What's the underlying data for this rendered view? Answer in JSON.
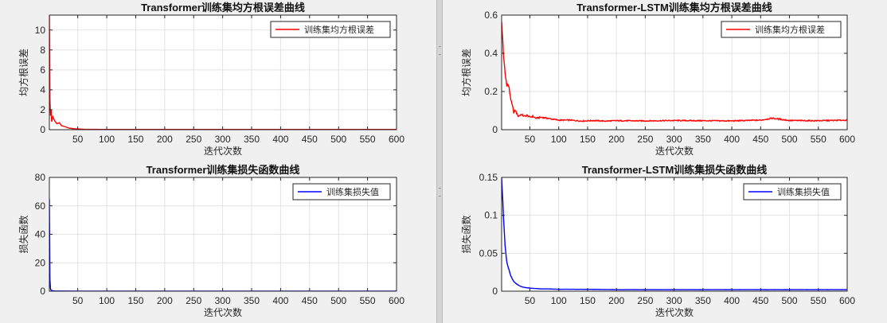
{
  "chart_data": [
    {
      "type": "line",
      "title": "Transformer训练集均方根误差曲线",
      "xlabel": "迭代次数",
      "ylabel": "均方根误差",
      "xlim": [
        1,
        600
      ],
      "ylim": [
        0,
        11.5
      ],
      "xticks": [
        50,
        100,
        150,
        200,
        250,
        300,
        350,
        400,
        450,
        500,
        550,
        600
      ],
      "yticks": [
        0,
        2,
        4,
        6,
        8,
        10
      ],
      "grid": true,
      "legend_position": "top-right",
      "series": [
        {
          "name": "训练集均方根误差",
          "color": "#ff0000",
          "x": [
            1,
            2,
            3,
            4,
            5,
            7,
            10,
            14,
            18,
            22,
            28,
            35,
            45,
            60,
            80,
            100,
            200,
            300,
            400,
            500,
            600
          ],
          "y": [
            11.5,
            3.0,
            1.4,
            2.0,
            0.8,
            1.3,
            0.9,
            0.6,
            0.7,
            0.4,
            0.3,
            0.15,
            0.08,
            0.04,
            0.03,
            0.02,
            0.02,
            0.02,
            0.02,
            0.02,
            0.02
          ]
        }
      ]
    },
    {
      "type": "line",
      "title": "Transformer训练集损失函数曲线",
      "xlabel": "迭代次数",
      "ylabel": "损失函数",
      "xlim": [
        1,
        600
      ],
      "ylim": [
        0,
        80
      ],
      "xticks": [
        50,
        100,
        150,
        200,
        250,
        300,
        350,
        400,
        450,
        500,
        550,
        600
      ],
      "yticks": [
        0,
        20,
        40,
        60,
        80
      ],
      "grid": true,
      "legend_position": "top-right",
      "series": [
        {
          "name": "训练集损失值",
          "color": "#0000ff",
          "x": [
            1,
            2,
            3,
            4,
            6,
            10,
            20,
            50,
            100,
            200,
            300,
            400,
            500,
            600
          ],
          "y": [
            65,
            8,
            1.5,
            0.8,
            0.3,
            0.2,
            0.1,
            0.05,
            0.02,
            0.01,
            0.01,
            0.01,
            0.01,
            0.01
          ]
        }
      ]
    },
    {
      "type": "line",
      "title": "Transformer-LSTM训练集均方根误差曲线",
      "xlabel": "迭代次数",
      "ylabel": "均方根误差",
      "xlim": [
        1,
        600
      ],
      "ylim": [
        0,
        0.6
      ],
      "xticks": [
        50,
        100,
        150,
        200,
        250,
        300,
        350,
        400,
        450,
        500,
        550,
        600
      ],
      "yticks": [
        0,
        0.2,
        0.4,
        0.6
      ],
      "grid": true,
      "legend_position": "top-right",
      "series": [
        {
          "name": "训练集均方根误差",
          "color": "#ff0000",
          "x": [
            1,
            3,
            5,
            8,
            10,
            13,
            16,
            18,
            20,
            22,
            25,
            28,
            30,
            35,
            40,
            45,
            50,
            55,
            60,
            70,
            80,
            90,
            100,
            120,
            140,
            160,
            180,
            200,
            250,
            300,
            350,
            400,
            450,
            470,
            500,
            550,
            600
          ],
          "y": [
            0.55,
            0.47,
            0.35,
            0.27,
            0.24,
            0.23,
            0.18,
            0.14,
            0.12,
            0.09,
            0.1,
            0.08,
            0.07,
            0.08,
            0.07,
            0.075,
            0.065,
            0.07,
            0.06,
            0.065,
            0.06,
            0.055,
            0.05,
            0.05,
            0.045,
            0.048,
            0.045,
            0.047,
            0.046,
            0.048,
            0.047,
            0.046,
            0.05,
            0.06,
            0.048,
            0.047,
            0.05
          ]
        }
      ]
    },
    {
      "type": "line",
      "title": "Transformer-LSTM训练集损失函数曲线",
      "xlabel": "迭代次数",
      "ylabel": "损失函数",
      "xlim": [
        1,
        600
      ],
      "ylim": [
        0,
        0.15
      ],
      "xticks": [
        50,
        100,
        150,
        200,
        250,
        300,
        350,
        400,
        450,
        500,
        550,
        600
      ],
      "yticks": [
        0,
        0.05,
        0.1,
        0.15
      ],
      "grid": true,
      "legend_position": "top-right",
      "series": [
        {
          "name": "训练集损失值",
          "color": "#0000ff",
          "x": [
            1,
            3,
            5,
            7,
            9,
            11,
            13,
            15,
            17,
            20,
            23,
            26,
            30,
            35,
            40,
            45,
            50,
            60,
            70,
            80,
            100,
            150,
            200,
            300,
            400,
            500,
            600
          ],
          "y": [
            0.148,
            0.12,
            0.085,
            0.06,
            0.045,
            0.035,
            0.03,
            0.025,
            0.02,
            0.015,
            0.012,
            0.01,
            0.008,
            0.006,
            0.005,
            0.0045,
            0.004,
            0.0035,
            0.003,
            0.003,
            0.0025,
            0.0025,
            0.002,
            0.002,
            0.002,
            0.002,
            0.002
          ]
        }
      ]
    }
  ]
}
